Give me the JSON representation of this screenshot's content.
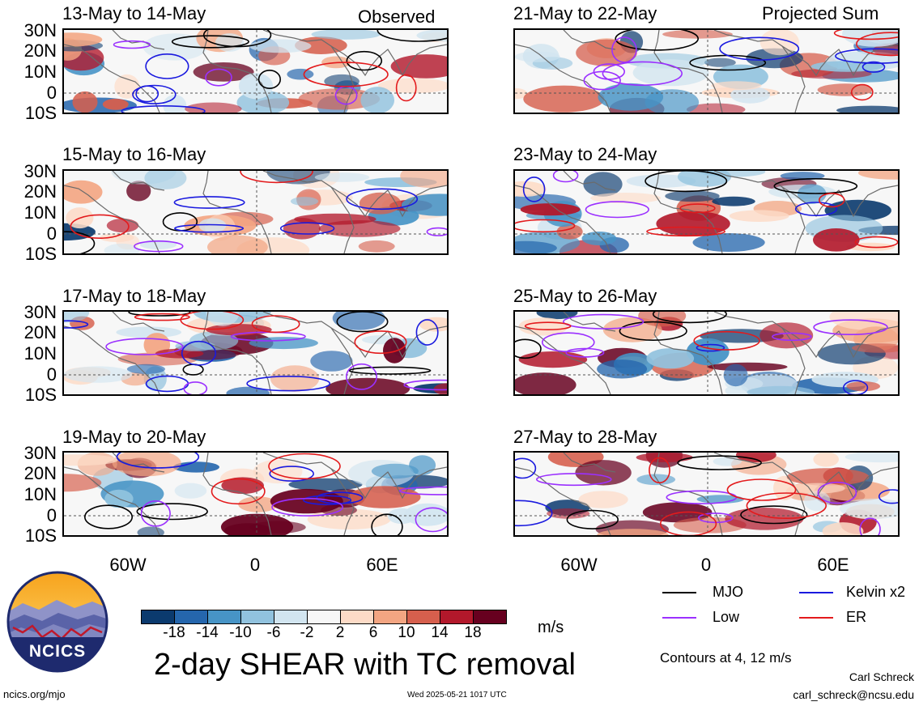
{
  "panels": [
    {
      "title": "13-May to 14-May",
      "tag": "Observed"
    },
    {
      "title": "15-May to 16-May",
      "tag": ""
    },
    {
      "title": "17-May to 18-May",
      "tag": ""
    },
    {
      "title": "19-May to 20-May",
      "tag": ""
    },
    {
      "title": "21-May to 22-May",
      "tag": "Projected Sum"
    },
    {
      "title": "23-May to 24-May",
      "tag": ""
    },
    {
      "title": "25-May to 26-May",
      "tag": ""
    },
    {
      "title": "27-May to 28-May",
      "tag": ""
    }
  ],
  "lat_labels": [
    "30N",
    "20N",
    "10N",
    "0",
    "10S"
  ],
  "lon_labels": [
    "60W",
    "0",
    "60E"
  ],
  "colorbar": {
    "levels": [
      "-18",
      "-14",
      "-10",
      "-6",
      "-2",
      "2",
      "6",
      "10",
      "14",
      "18"
    ],
    "colors": [
      "#0b3a6e",
      "#2566ad",
      "#4794c6",
      "#91c2de",
      "#d2e5f0",
      "#f7f7f7",
      "#fddbc7",
      "#f3a582",
      "#d65f4d",
      "#b2182b",
      "#67001f"
    ],
    "unit": "m/s"
  },
  "legend": {
    "items": [
      {
        "label": "MJO",
        "color": "#000000"
      },
      {
        "label": "Kelvin x2",
        "color": "#1a1adf"
      },
      {
        "label": "Low",
        "color": "#9b30ff"
      },
      {
        "label": "ER",
        "color": "#e31a1c"
      }
    ],
    "contours_note": "Contours at 4, 12 m/s"
  },
  "main_title": "2-day SHEAR with TC removal",
  "logo_text": "NCICS",
  "footer": {
    "url": "ncics.org/mjo",
    "timestamp": "Wed 2025-05-21 1017 UTC",
    "author": "Carl Schreck",
    "email": "carl_schreck@ncsu.edu"
  }
}
